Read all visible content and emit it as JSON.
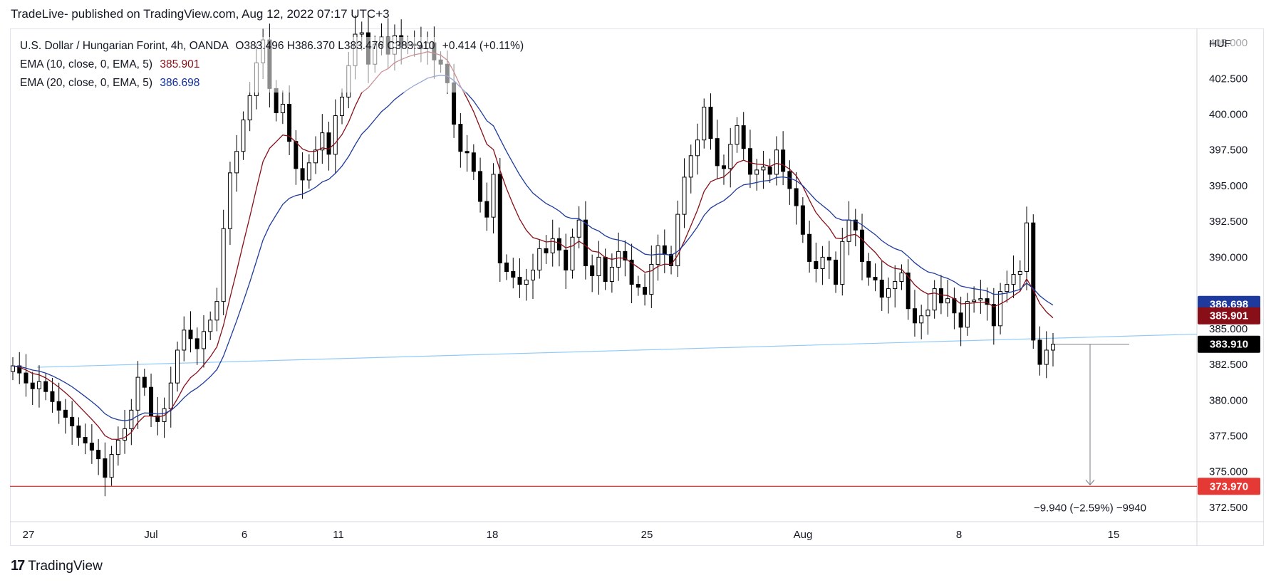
{
  "header": {
    "published_line": "TradeLive- published on TradingView.com, Aug 12, 2022 07:17 UTC+3"
  },
  "legend": {
    "symbol": "U.S. Dollar / Hungarian Forint, 4h, OANDA",
    "ohlc": "O383.496 H386.370 L383.476 C383.910",
    "change": "+0.414 (+0.11%)",
    "ema10_label": "EMA (10, close, 0, EMA, 5)",
    "ema10_value": "385.901",
    "ema20_label": "EMA (20, close, 0, EMA, 5)",
    "ema20_value": "386.698"
  },
  "price_axis": {
    "currency": "HUF",
    "ticks": [
      "405.000",
      "402.500",
      "400.000",
      "397.500",
      "395.000",
      "392.500",
      "390.000",
      "385.000",
      "382.500",
      "380.000",
      "377.500",
      "375.000",
      "372.500"
    ]
  },
  "time_axis": {
    "labels": [
      "27",
      "Jul",
      "6",
      "11",
      "18",
      "25",
      "Aug",
      "8",
      "15"
    ]
  },
  "price_tags": {
    "ema20": "386.698",
    "ema10": "385.901",
    "last": "383.910",
    "target": "373.970"
  },
  "measure_label": "−9.940 (−2.59%) −9940",
  "footer": {
    "logo": "17",
    "brand": "TradingView"
  },
  "colors": {
    "up": "#ffffff",
    "down": "#000000",
    "ema10": "#880e17",
    "ema20": "#1e3a9c",
    "trendline": "#90caf9",
    "support": "#e53935",
    "tag_ema20": "#1e3a9c",
    "tag_ema10": "#880e17",
    "tag_last": "#000000",
    "tag_target": "#e53935"
  },
  "chart_data": {
    "type": "candlestick",
    "title": "U.S. Dollar / Hungarian Forint, 4h, OANDA",
    "currency": "HUF",
    "ylim": [
      371.5,
      406
    ],
    "x_labels": [
      "27",
      "Jul",
      "6",
      "11",
      "18",
      "25",
      "Aug",
      "8",
      "15"
    ],
    "candles_close": [
      382.4,
      381.9,
      381.2,
      380.8,
      381.3,
      380.6,
      379.9,
      379.3,
      378.8,
      378.2,
      377.4,
      377.0,
      376.5,
      375.9,
      374.6,
      376.2,
      377.2,
      378.0,
      379.3,
      381.6,
      380.9,
      378.9,
      378.5,
      379.4,
      381.2,
      383.5,
      384.9,
      384.3,
      383.6,
      384.8,
      385.6,
      386.9,
      392.0,
      395.9,
      397.4,
      399.6,
      401.3,
      403.6,
      405.2,
      401.8,
      400.1,
      400.7,
      398.1,
      396.2,
      395.4,
      396.6,
      397.5,
      398.7,
      397.2,
      399.9,
      401.2,
      403.4,
      405.6,
      405.7,
      403.5,
      404.9,
      405.4,
      404.2,
      405.5,
      404.8,
      404.9,
      404.8,
      404.6,
      405.0,
      403.8,
      403.5,
      402.2,
      399.3,
      397.4,
      397.3,
      396.0,
      393.9,
      392.8,
      395.8,
      389.6,
      389.0,
      388.6,
      388.1,
      388.4,
      389.1,
      390.6,
      390.3,
      391.3,
      390.5,
      389.1,
      391.4,
      392.6,
      389.4,
      388.7,
      390.0,
      388.3,
      389.3,
      390.4,
      389.8,
      388.1,
      387.9,
      387.4,
      389.5,
      390.8,
      390.2,
      389.4,
      393.0,
      395.6,
      397.1,
      398.2,
      400.5,
      398.3,
      396.4,
      396.2,
      397.9,
      399.2,
      397.6,
      395.8,
      396.1,
      396.3,
      395.8,
      397.5,
      396.0,
      394.8,
      393.6,
      391.6,
      389.7,
      389.2,
      390.0,
      389.8,
      388.1,
      391.1,
      392.6,
      391.9,
      389.7,
      388.6,
      388.4,
      387.2,
      387.8,
      388.3,
      388.9,
      386.4,
      385.4,
      385.9,
      386.3,
      387.8,
      386.8,
      387.1,
      386.1,
      385.1,
      386.9,
      387.0,
      387.1,
      386.7,
      385.2,
      387.6,
      388.1,
      388.8,
      389.0,
      392.4,
      384.2,
      382.5,
      383.5,
      383.91
    ],
    "ema10_end": 385.901,
    "ema20_end": 386.698,
    "last_close": 383.91,
    "trendline": {
      "from": {
        "date": "Jun 29",
        "price": 382.3
      },
      "to": {
        "date": "Aug 15",
        "price": 384.65
      }
    },
    "support_level": 373.97,
    "measure": {
      "from": 383.91,
      "to": 373.97,
      "change": -9.94,
      "pct": -2.59,
      "ticks": -9940
    }
  }
}
